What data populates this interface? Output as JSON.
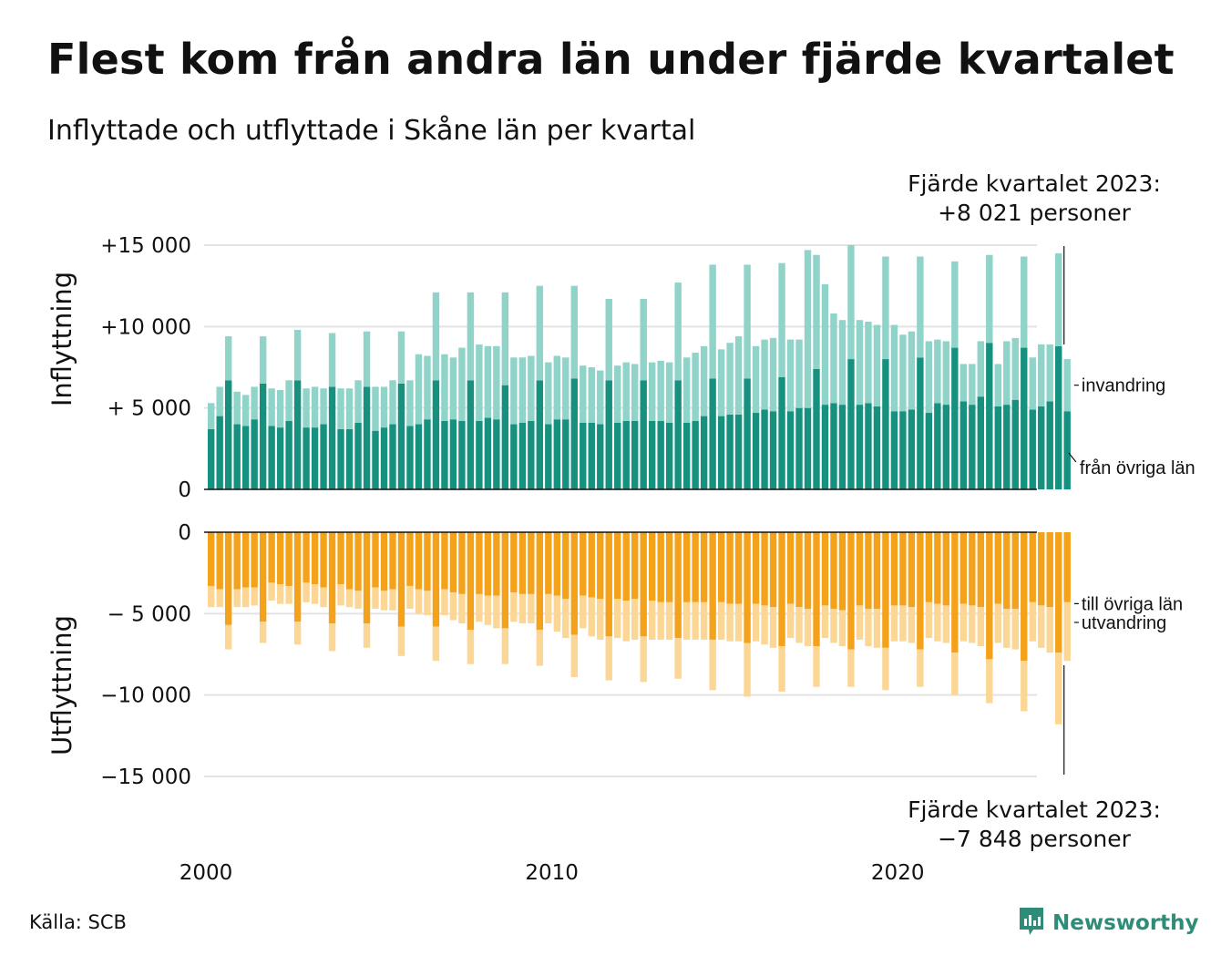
{
  "title": "Flest kom från andra län under fjärde kvartalet",
  "subtitle": "Inflyttade och utflyttade i Skåne län per kvartal",
  "callout_top": {
    "line1": "Fjärde kvartalet 2023:",
    "line2": "+8 021 personer"
  },
  "callout_bottom": {
    "line1": "Fjärde kvartalet 2023:",
    "line2": "−7 848 personer"
  },
  "source": "Källa: SCB",
  "logo": {
    "text": "Newsworthy",
    "icon": "newsworthy-chart-bubble-icon"
  },
  "colors": {
    "in_domestic": "#16917f",
    "in_immigration": "#8fd3c9",
    "out_domestic": "#f5a21b",
    "out_emigration": "#fbd695",
    "grid": "#e3e3e3"
  },
  "chart_data": {
    "type": "bar",
    "stacked": true,
    "x_label_ticks": [
      "2000",
      "2010",
      "2020"
    ],
    "x_start": "2000 Q1",
    "x_end": "2023 Q4",
    "panels": [
      {
        "name": "Inflyttning",
        "ylim": [
          0,
          15000
        ],
        "yticks": [
          0,
          5000,
          10000,
          15000
        ],
        "ytick_labels": [
          "0",
          "+ 5 000",
          "+10 000",
          "+15 000"
        ],
        "series": [
          {
            "name": "från övriga län",
            "values": [
              3700,
              4500,
              6700,
              4000,
              3900,
              4300,
              6500,
              3900,
              3800,
              4200,
              6700,
              3800,
              3800,
              4000,
              6300,
              3700,
              3700,
              4100,
              6300,
              3600,
              3800,
              4000,
              6500,
              3900,
              4000,
              4300,
              6700,
              4200,
              4300,
              4200,
              6700,
              4200,
              4400,
              4300,
              6400,
              4000,
              4100,
              4200,
              6700,
              4000,
              4300,
              4300,
              6800,
              4100,
              4100,
              4000,
              6700,
              4100,
              4200,
              4200,
              6700,
              4200,
              4200,
              4100,
              6700,
              4100,
              4200,
              4500,
              6800,
              4500,
              4600,
              4600,
              6800,
              4700,
              4900,
              4800,
              6900,
              4800,
              5000,
              5000,
              7400,
              5200,
              5300,
              5200,
              8000,
              5200,
              5300,
              5100,
              8000,
              4800,
              4800,
              4900,
              8100,
              4700,
              5300,
              5200,
              8700,
              5400,
              5200,
              5700,
              9000,
              5100,
              5200,
              5500,
              8700,
              4900,
              5100,
              5400,
              8800,
              4800
            ]
          },
          {
            "name": "invandring",
            "values": [
              1600,
              1800,
              2700,
              2000,
              1900,
              2000,
              2900,
              2300,
              2300,
              2500,
              3100,
              2400,
              2500,
              2200,
              3300,
              2500,
              2500,
              2600,
              3400,
              2700,
              2500,
              2700,
              3200,
              2800,
              4300,
              3900,
              5400,
              4100,
              3800,
              4500,
              5400,
              4700,
              4400,
              4500,
              5700,
              4100,
              4000,
              4000,
              5800,
              3800,
              3900,
              3800,
              5700,
              3500,
              3400,
              3300,
              5000,
              3500,
              3600,
              3500,
              5000,
              3600,
              3700,
              3700,
              6000,
              4000,
              4200,
              4300,
              7000,
              4100,
              4400,
              4800,
              7000,
              4100,
              4300,
              4500,
              7000,
              4400,
              4200,
              9700,
              7000,
              7400,
              5500,
              5200,
              7000,
              5200,
              5000,
              5000,
              6300,
              5300,
              4700,
              4800,
              6200,
              4400,
              3900,
              3900,
              5300,
              2300,
              2500,
              3400,
              5400,
              2600,
              3900,
              3800,
              5600,
              3200,
              3800,
              3500,
              5700,
              3200
            ]
          }
        ]
      },
      {
        "name": "Utflyttning",
        "ylim": [
          -15000,
          0
        ],
        "yticks": [
          0,
          -5000,
          -10000,
          -15000
        ],
        "ytick_labels": [
          "0",
          "− 5 000",
          "−10 000",
          "−15 000"
        ],
        "series": [
          {
            "name": "till övriga län",
            "values": [
              -3300,
              -3500,
              -5700,
              -3500,
              -3400,
              -3400,
              -5500,
              -3100,
              -3200,
              -3300,
              -5500,
              -3100,
              -3200,
              -3400,
              -5600,
              -3200,
              -3500,
              -3600,
              -5600,
              -3400,
              -3600,
              -3500,
              -5800,
              -3300,
              -3500,
              -3600,
              -5800,
              -3500,
              -3700,
              -3800,
              -6000,
              -3800,
              -3900,
              -3900,
              -5900,
              -3700,
              -3800,
              -3800,
              -6000,
              -3800,
              -3900,
              -4100,
              -6300,
              -3900,
              -4000,
              -4100,
              -6400,
              -4100,
              -4200,
              -4100,
              -6400,
              -4200,
              -4300,
              -4300,
              -6500,
              -4300,
              -4300,
              -4300,
              -6600,
              -4300,
              -4400,
              -4400,
              -6800,
              -4400,
              -4500,
              -4600,
              -7000,
              -4400,
              -4600,
              -4700,
              -7000,
              -4500,
              -4700,
              -4800,
              -7200,
              -4500,
              -4700,
              -4700,
              -7100,
              -4500,
              -4500,
              -4600,
              -7200,
              -4300,
              -4400,
              -4500,
              -7400,
              -4400,
              -4500,
              -4600,
              -7800,
              -4400,
              -4700,
              -4700,
              -7900,
              -4300,
              -4500,
              -4600,
              -7400,
              -4300
            ]
          },
          {
            "name": "utvandring",
            "values": [
              -1300,
              -1100,
              -1500,
              -1100,
              -1200,
              -1100,
              -1300,
              -1100,
              -1200,
              -1100,
              -1400,
              -1200,
              -1200,
              -1200,
              -1700,
              -1300,
              -1100,
              -1100,
              -1500,
              -1300,
              -1200,
              -1300,
              -1800,
              -1400,
              -1500,
              -1500,
              -2100,
              -1600,
              -1700,
              -1800,
              -2100,
              -1700,
              -1800,
              -2000,
              -2200,
              -1800,
              -1800,
              -1800,
              -2200,
              -1800,
              -2200,
              -2400,
              -2600,
              -2000,
              -2400,
              -2500,
              -2700,
              -2400,
              -2500,
              -2500,
              -2800,
              -2400,
              -2300,
              -2300,
              -2500,
              -2300,
              -2300,
              -2300,
              -3100,
              -2300,
              -2300,
              -2300,
              -3300,
              -2300,
              -2400,
              -2500,
              -2800,
              -2100,
              -2200,
              -2300,
              -2500,
              -2000,
              -2100,
              -2200,
              -2300,
              -2100,
              -2300,
              -2400,
              -2600,
              -2200,
              -2200,
              -2200,
              -2300,
              -2200,
              -2300,
              -2300,
              -2600,
              -2300,
              -2300,
              -2400,
              -2700,
              -2400,
              -2400,
              -2500,
              -3100,
              -2400,
              -2600,
              -2800,
              -4400,
              -3600
            ]
          }
        ]
      }
    ],
    "legend_placement": "right, beside last bar",
    "grid": true
  },
  "axis_titles": {
    "top": "Inflyttning",
    "bottom": "Utflyttning"
  }
}
